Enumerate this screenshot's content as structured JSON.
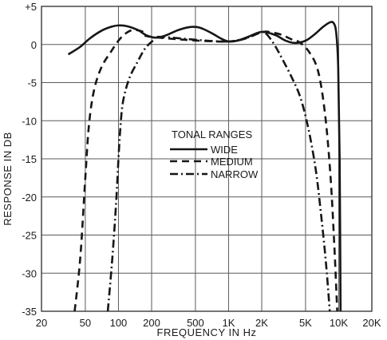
{
  "chart_data": {
    "type": "line",
    "title": "",
    "xlabel": "FREQUENCY IN Hz",
    "ylabel": "RESPONSE IN DB",
    "x_scale": "log",
    "xlim": [
      20,
      20000
    ],
    "ylim": [
      -35,
      5
    ],
    "grid": true,
    "x_ticks": [
      {
        "value": 20,
        "label": "20"
      },
      {
        "value": 50,
        "label": "50"
      },
      {
        "value": 100,
        "label": "100"
      },
      {
        "value": 200,
        "label": "200"
      },
      {
        "value": 500,
        "label": "500"
      },
      {
        "value": 1000,
        "label": "1K"
      },
      {
        "value": 2000,
        "label": "2K"
      },
      {
        "value": 5000,
        "label": "5K"
      },
      {
        "value": 10000,
        "label": "10K"
      },
      {
        "value": 20000,
        "label": "20K"
      }
    ],
    "y_ticks": [
      {
        "value": 5,
        "label": "+5"
      },
      {
        "value": 0,
        "label": "0"
      },
      {
        "value": -5,
        "label": "-5"
      },
      {
        "value": -10,
        "label": "-10"
      },
      {
        "value": -15,
        "label": "-15"
      },
      {
        "value": -20,
        "label": "-20"
      },
      {
        "value": -25,
        "label": "-25"
      },
      {
        "value": -30,
        "label": "-30"
      },
      {
        "value": -35,
        "label": "-35"
      }
    ],
    "legend": {
      "title": "TONAL RANGES",
      "placement": "center"
    },
    "series": [
      {
        "name": "WIDE",
        "style": "solid",
        "points": [
          [
            35,
            -1.3
          ],
          [
            45,
            -0.3
          ],
          [
            55,
            0.8
          ],
          [
            70,
            1.8
          ],
          [
            85,
            2.3
          ],
          [
            100,
            2.5
          ],
          [
            120,
            2.4
          ],
          [
            150,
            1.9
          ],
          [
            180,
            1.2
          ],
          [
            220,
            0.9
          ],
          [
            270,
            1.2
          ],
          [
            350,
            1.9
          ],
          [
            450,
            2.3
          ],
          [
            550,
            2.2
          ],
          [
            700,
            1.5
          ],
          [
            850,
            0.8
          ],
          [
            1000,
            0.4
          ],
          [
            1200,
            0.5
          ],
          [
            1500,
            1.0
          ],
          [
            1900,
            1.6
          ],
          [
            2200,
            1.6
          ],
          [
            2700,
            1.2
          ],
          [
            3300,
            0.5
          ],
          [
            4000,
            0.2
          ],
          [
            5000,
            0.5
          ],
          [
            6000,
            1.3
          ],
          [
            7200,
            2.3
          ],
          [
            8300,
            2.9
          ],
          [
            9000,
            2.8
          ],
          [
            9500,
            1.5
          ],
          [
            9900,
            -3.0
          ],
          [
            10200,
            -15.0
          ],
          [
            10400,
            -35.0
          ]
        ]
      },
      {
        "name": "MEDIUM",
        "style": "dashed",
        "points": [
          [
            40,
            -35.0
          ],
          [
            45,
            -28.0
          ],
          [
            50,
            -17.5
          ],
          [
            54,
            -10.5
          ],
          [
            60,
            -6.0
          ],
          [
            70,
            -3.0
          ],
          [
            85,
            -1.0
          ],
          [
            100,
            0.5
          ],
          [
            115,
            1.4
          ],
          [
            135,
            1.9
          ],
          [
            165,
            1.7
          ],
          [
            200,
            1.0
          ],
          [
            1000,
            0.4
          ],
          [
            2000,
            1.6
          ],
          [
            2400,
            1.6
          ],
          [
            3000,
            1.3
          ],
          [
            3700,
            0.7
          ],
          [
            4400,
            0.3
          ],
          [
            5400,
            -1.0
          ],
          [
            6500,
            -3.5
          ],
          [
            7500,
            -9.0
          ],
          [
            8400,
            -17.0
          ],
          [
            9100,
            -26.0
          ],
          [
            9700,
            -35.0
          ]
        ]
      },
      {
        "name": "NARROW",
        "style": "dashdot",
        "points": [
          [
            80,
            -35.0
          ],
          [
            88,
            -28.0
          ],
          [
            95,
            -21.0
          ],
          [
            100,
            -15.0
          ],
          [
            104,
            -11.0
          ],
          [
            110,
            -7.5
          ],
          [
            125,
            -4.5
          ],
          [
            150,
            -2.2
          ],
          [
            175,
            -0.5
          ],
          [
            210,
            0.6
          ],
          [
            240,
            1.0
          ],
          [
            1000,
            0.4
          ],
          [
            2000,
            1.6
          ],
          [
            2200,
            1.4
          ],
          [
            2600,
            0.0
          ],
          [
            3100,
            -2.0
          ],
          [
            3800,
            -4.5
          ],
          [
            4500,
            -7.0
          ],
          [
            5300,
            -11.0
          ],
          [
            6200,
            -16.5
          ],
          [
            7000,
            -23.0
          ],
          [
            7700,
            -29.0
          ],
          [
            8300,
            -35.0
          ]
        ]
      }
    ]
  }
}
